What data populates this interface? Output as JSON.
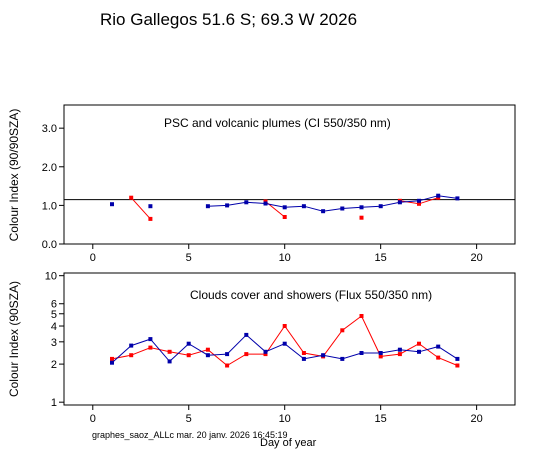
{
  "title": "Rio Gallegos  51.6 S; 69.3 W   2026",
  "footer": "graphes_saoz_ALLc  mar. 20 janv. 2026 16:45:19",
  "xlabel": "Day of year",
  "chart_data": [
    {
      "type": "scatter",
      "title": "PSC and volcanic plumes (CI 550/350 nm)",
      "ylabel": "Colour Index (90/90SZA)",
      "xlim": [
        -1.5,
        22
      ],
      "ylim": [
        0,
        3.6
      ],
      "xticks": [
        0,
        5,
        10,
        15,
        20
      ],
      "yticks": [
        0.0,
        1.0,
        2.0,
        3.0
      ],
      "ytick_labels": [
        "0.0",
        "1.0",
        "2.0",
        "3.0"
      ],
      "reference_line": 1.15,
      "colors": {
        "red": "#ff0000",
        "blue": "#0000aa"
      },
      "series": [
        {
          "color": "red",
          "segments": [
            [
              [
                2,
                1.2
              ],
              [
                3,
                0.65
              ]
            ],
            [
              [
                9,
                1.1
              ],
              [
                10,
                0.7
              ]
            ],
            [
              [
                14,
                0.68
              ]
            ],
            [
              [
                16,
                1.12
              ],
              [
                17,
                1.04
              ],
              [
                18,
                1.2
              ]
            ]
          ]
        },
        {
          "color": "blue",
          "segments": [
            [
              [
                1,
                1.03
              ]
            ],
            [
              [
                3,
                0.98
              ]
            ],
            [
              [
                6,
                0.98
              ],
              [
                7,
                1.0
              ],
              [
                8,
                1.08
              ],
              [
                9,
                1.05
              ],
              [
                10,
                0.95
              ],
              [
                11,
                0.98
              ],
              [
                12,
                0.85
              ],
              [
                13,
                0.92
              ],
              [
                14,
                0.95
              ],
              [
                15,
                0.98
              ],
              [
                16,
                1.08
              ],
              [
                17,
                1.12
              ],
              [
                18,
                1.25
              ],
              [
                19,
                1.18
              ]
            ]
          ]
        }
      ]
    },
    {
      "type": "line",
      "title": "Clouds cover and showers (Flux 550/350 nm)",
      "ylabel": "Colour Index (90SZA)",
      "xlim": [
        -1.5,
        22
      ],
      "ylim": [
        0.95,
        10.5
      ],
      "yscale": "log",
      "xticks": [
        0,
        5,
        10,
        15,
        20
      ],
      "yticks": [
        1,
        2,
        3,
        4,
        5,
        6,
        10
      ],
      "ytick_labels": [
        "1",
        "2",
        "3",
        "4",
        "5",
        "6",
        "10"
      ],
      "colors": {
        "red": "#ff0000",
        "blue": "#0000aa"
      },
      "series": [
        {
          "color": "red",
          "segments": [
            [
              [
                1,
                2.2
              ],
              [
                2,
                2.35
              ],
              [
                3,
                2.7
              ],
              [
                4,
                2.5
              ],
              [
                5,
                2.35
              ],
              [
                6,
                2.6
              ],
              [
                7,
                1.95
              ],
              [
                8,
                2.4
              ],
              [
                9,
                2.4
              ],
              [
                10,
                4.0
              ],
              [
                11,
                2.45
              ],
              [
                12,
                2.3
              ],
              [
                13,
                3.7
              ],
              [
                14,
                4.8
              ],
              [
                15,
                2.3
              ],
              [
                16,
                2.4
              ],
              [
                17,
                2.9
              ],
              [
                18,
                2.25
              ],
              [
                19,
                1.95
              ]
            ]
          ]
        },
        {
          "color": "blue",
          "segments": [
            [
              [
                1,
                2.05
              ],
              [
                2,
                2.8
              ],
              [
                3,
                3.15
              ],
              [
                4,
                2.1
              ],
              [
                5,
                2.9
              ],
              [
                6,
                2.35
              ],
              [
                7,
                2.4
              ],
              [
                8,
                3.4
              ],
              [
                9,
                2.5
              ],
              [
                10,
                2.9
              ],
              [
                11,
                2.2
              ],
              [
                12,
                2.35
              ],
              [
                13,
                2.2
              ],
              [
                14,
                2.45
              ],
              [
                15,
                2.45
              ],
              [
                16,
                2.6
              ],
              [
                17,
                2.5
              ],
              [
                18,
                2.75
              ],
              [
                19,
                2.2
              ]
            ]
          ]
        }
      ]
    }
  ]
}
